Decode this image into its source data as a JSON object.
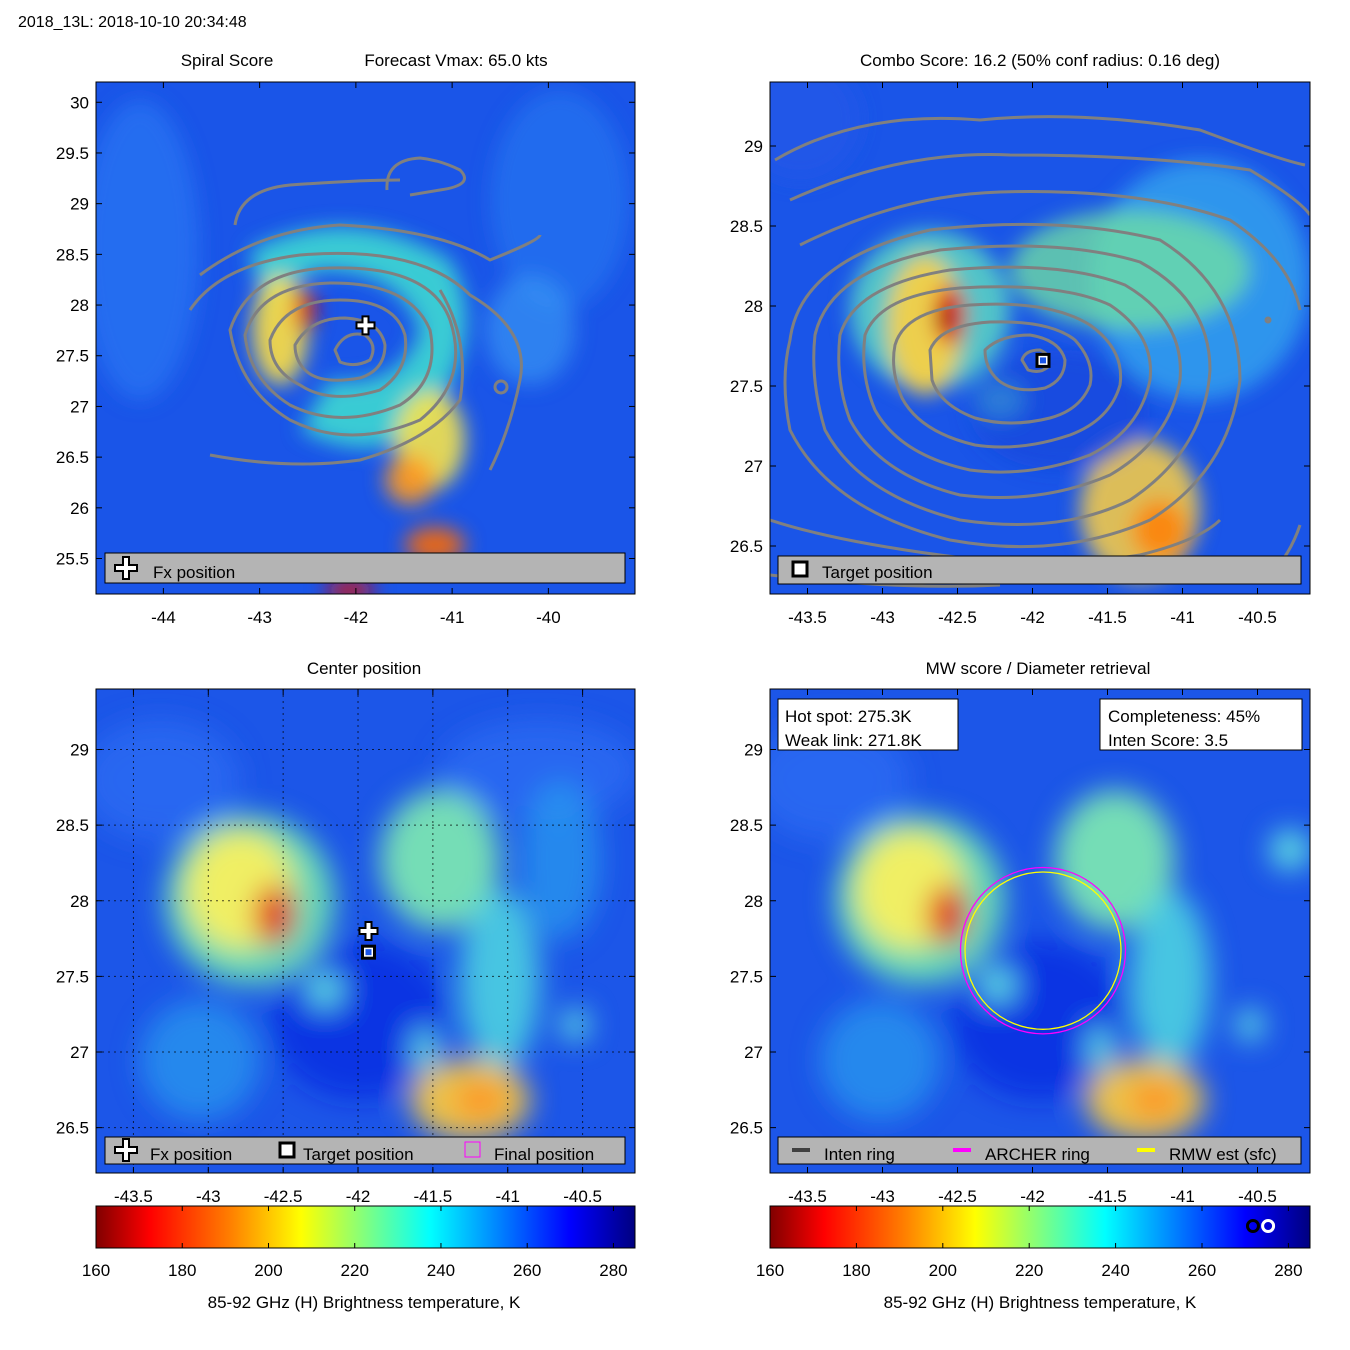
{
  "header": "2018_13L: 2018-10-10 20:34:48",
  "colors": {
    "panel_bg": "#1a55e8",
    "contour": "#808080",
    "legend_box": "#b4b4b4",
    "archer_ring": "#ff00ff",
    "rmw_ring": "#ffff00",
    "inten_ring": "#404040"
  },
  "colormap_stops": [
    "#800000",
    "#ff0000",
    "#ff8000",
    "#ffff00",
    "#80ff80",
    "#00ffff",
    "#0080ff",
    "#0000ff",
    "#000080"
  ],
  "chart_data": [
    {
      "type": "heatmap",
      "panel": "spiral",
      "title_left": "Spiral Score",
      "title_right": "Forecast Vmax: 65.0 kts",
      "xlim": [
        -44.7,
        -39.1
      ],
      "ylim": [
        25.15,
        30.2
      ],
      "x_ticks": [
        -44,
        -43,
        -42,
        -41,
        -40
      ],
      "x_tick_labels": [
        "-44",
        "-43",
        "-42",
        "-41",
        "-40"
      ],
      "y_ticks": [
        25.5,
        26,
        26.5,
        27,
        27.5,
        28,
        28.5,
        29,
        29.5,
        30
      ],
      "y_tick_labels": [
        "25.5",
        "26",
        "26.5",
        "27",
        "27.5",
        "28",
        "28.5",
        "29",
        "29.5",
        "30"
      ],
      "markers": [
        {
          "kind": "plus",
          "x": -41.9,
          "y": 27.8
        }
      ],
      "legend": [
        {
          "icon": "plus",
          "label": "Fx position"
        }
      ]
    },
    {
      "type": "heatmap",
      "panel": "combo",
      "title": "Combo Score: 16.2  (50% conf radius: 0.16 deg)",
      "xlim": [
        -43.75,
        -40.15
      ],
      "ylim": [
        26.2,
        29.4
      ],
      "x_ticks": [
        -43.5,
        -43,
        -42.5,
        -42,
        -41.5,
        -41,
        -40.5
      ],
      "x_tick_labels": [
        "-43.5",
        "-43",
        "-42.5",
        "-42",
        "-41.5",
        "-41",
        "-40.5"
      ],
      "y_ticks": [
        26.5,
        27,
        27.5,
        28,
        28.5,
        29
      ],
      "y_tick_labels": [
        "26.5",
        "27",
        "27.5",
        "28",
        "28.5",
        "29"
      ],
      "markers": [
        {
          "kind": "square",
          "x": -41.93,
          "y": 27.66
        }
      ],
      "legend": [
        {
          "icon": "square",
          "label": "Target position"
        }
      ]
    },
    {
      "type": "heatmap",
      "panel": "center",
      "title": "Center position",
      "xlim": [
        -43.75,
        -40.15
      ],
      "ylim": [
        26.2,
        29.4
      ],
      "x_ticks": [
        -43.5,
        -43,
        -42.5,
        -42,
        -41.5,
        -41,
        -40.5
      ],
      "x_tick_labels": [
        "-43.5",
        "-43",
        "-42.5",
        "-42",
        "-41.5",
        "-41",
        "-40.5"
      ],
      "y_ticks": [
        26.5,
        27,
        27.5,
        28,
        28.5,
        29
      ],
      "y_tick_labels": [
        "26.5",
        "27",
        "27.5",
        "28",
        "28.5",
        "29"
      ],
      "grid": true,
      "markers": [
        {
          "kind": "plus",
          "x": -41.93,
          "y": 27.8
        },
        {
          "kind": "square",
          "x": -41.93,
          "y": 27.66
        }
      ],
      "legend": [
        {
          "icon": "plus",
          "label": "Fx position"
        },
        {
          "icon": "square",
          "label": "Target position"
        },
        {
          "icon": "magenta-square",
          "label": "Final position"
        }
      ]
    },
    {
      "type": "heatmap",
      "panel": "mw",
      "title": "MW score / Diameter retrieval",
      "xlim": [
        -43.75,
        -40.15
      ],
      "ylim": [
        26.2,
        29.4
      ],
      "x_ticks": [
        -43.5,
        -43,
        -42.5,
        -42,
        -41.5,
        -41,
        -40.5
      ],
      "x_tick_labels": [
        "-43.5",
        "-43",
        "-42.5",
        "-42",
        "-41.5",
        "-41",
        "-40.5"
      ],
      "y_ticks": [
        26.5,
        27,
        27.5,
        28,
        28.5,
        29
      ],
      "y_tick_labels": [
        "26.5",
        "27",
        "27.5",
        "28",
        "28.5",
        "29"
      ],
      "info_left": [
        "Hot spot: 275.3K",
        "Weak link: 271.8K"
      ],
      "info_right": [
        "Completeness: 45%",
        "Inten Score: 3.5"
      ],
      "rings": [
        {
          "name": "ARCHER ring",
          "cx": -41.93,
          "cy": 27.67,
          "r_deg": 0.55
        },
        {
          "name": "RMW est (sfc)",
          "cx": -41.93,
          "cy": 27.67,
          "r_deg": 0.52
        }
      ],
      "legend": [
        {
          "icon": "dark-line",
          "label": "Inten ring"
        },
        {
          "icon": "magenta-line",
          "label": "ARCHER ring"
        },
        {
          "icon": "yellow-line",
          "label": "RMW est (sfc)"
        }
      ]
    },
    {
      "type": "colorbar",
      "panel": "colorbar-left",
      "range": [
        160,
        285
      ],
      "ticks": [
        160,
        180,
        200,
        220,
        240,
        260,
        280
      ],
      "tick_labels": [
        "160",
        "180",
        "200",
        "220",
        "240",
        "260",
        "280"
      ],
      "label": "85-92 GHz (H) Brightness temperature, K"
    },
    {
      "type": "colorbar",
      "panel": "colorbar-right",
      "range": [
        160,
        285
      ],
      "ticks": [
        160,
        180,
        200,
        220,
        240,
        260,
        280
      ],
      "tick_labels": [
        "160",
        "180",
        "200",
        "220",
        "240",
        "260",
        "280"
      ],
      "label": "85-92 GHz (H) Brightness temperature, K",
      "markers": [
        {
          "kind": "black-ring",
          "value": 271.8
        },
        {
          "kind": "white-ring",
          "value": 275.3
        }
      ]
    }
  ]
}
